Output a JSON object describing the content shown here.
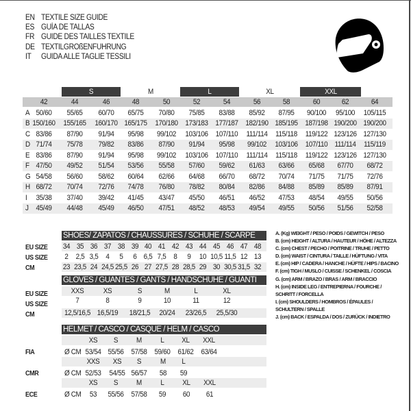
{
  "titles": [
    {
      "code": "EN",
      "text": "TEXTILE SIZE GUIDE"
    },
    {
      "code": "ES",
      "text": "GUÍA DE TALLAS"
    },
    {
      "code": "FR",
      "text": "GUIDE DES TAILLES TEXTILE"
    },
    {
      "code": "DE",
      "text": "TEXTILGRÖßENFÜHRUNG"
    },
    {
      "code": "IT",
      "text": "GUIDA ALLE TAGLIE TESSILI"
    }
  ],
  "logo_icon": "helmet-icon",
  "textile": {
    "size_groups": [
      "S",
      "M",
      "L",
      "XL",
      "XXL"
    ],
    "columns": [
      "42",
      "44",
      "46",
      "48",
      "50",
      "52",
      "54",
      "56",
      "58",
      "60",
      "62",
      "64"
    ],
    "rows": [
      {
        "letter": "A",
        "values": [
          "50/60",
          "55/65",
          "60/70",
          "65/75",
          "70/80",
          "75/85",
          "83/88",
          "85/92",
          "87/95",
          "90/100",
          "95/100",
          "105/115"
        ]
      },
      {
        "letter": "B",
        "values": [
          "150/160",
          "155/165",
          "160/170",
          "165/175",
          "170/180",
          "173/183",
          "177/187",
          "182/190",
          "185/195",
          "187/198",
          "190/200",
          "190/200"
        ]
      },
      {
        "letter": "C",
        "values": [
          "83/86",
          "87/90",
          "91/94",
          "95/98",
          "99/102",
          "103/106",
          "107/110",
          "111/114",
          "115/118",
          "119/122",
          "123/126",
          "127/130"
        ]
      },
      {
        "letter": "D",
        "values": [
          "71/74",
          "75/78",
          "79/82",
          "83/86",
          "87/90",
          "91/94",
          "95/98",
          "99/102",
          "103/106",
          "107/110",
          "111/114",
          "115/119"
        ]
      },
      {
        "letter": "E",
        "values": [
          "83/86",
          "87/90",
          "91/94",
          "95/98",
          "99/102",
          "103/106",
          "107/110",
          "111/114",
          "115/118",
          "119/122",
          "123/126",
          "127/130"
        ]
      },
      {
        "letter": "F",
        "values": [
          "47/50",
          "49/52",
          "51/54",
          "53/56",
          "55/58",
          "57/60",
          "59/62",
          "61/63",
          "63/66",
          "65/68",
          "67/70",
          "68/72"
        ]
      },
      {
        "letter": "G",
        "values": [
          "54/58",
          "56/60",
          "58/62",
          "60/64",
          "62/66",
          "64/68",
          "66/70",
          "68/72",
          "70/74",
          "71/75",
          "71/75",
          "72/76"
        ]
      },
      {
        "letter": "H",
        "values": [
          "68/72",
          "70/74",
          "72/76",
          "74/78",
          "76/80",
          "78/82",
          "80/84",
          "82/86",
          "84/88",
          "85/89",
          "85/89",
          "87/91"
        ]
      },
      {
        "letter": "I",
        "values": [
          "35/38",
          "37/40",
          "39/42",
          "41/45",
          "43/47",
          "45/50",
          "46/51",
          "46/52",
          "47/53",
          "48/54",
          "49/55",
          "50/56"
        ]
      },
      {
        "letter": "J",
        "values": [
          "45/49",
          "44/48",
          "45/49",
          "46/50",
          "47/51",
          "48/52",
          "48/53",
          "49/54",
          "49/55",
          "50/56",
          "51/56",
          "52/58"
        ]
      }
    ]
  },
  "shoes": {
    "header": "SHOES/ ZAPATOS / CHAUSSURES / SCHUHE / SCARPE",
    "rows": [
      {
        "label": "EU SIZE",
        "values": [
          "34",
          "35",
          "36",
          "37",
          "38",
          "39",
          "40",
          "41",
          "42",
          "43",
          "44",
          "45",
          "46",
          "47",
          "48"
        ]
      },
      {
        "label": "US SIZE",
        "values": [
          "2",
          "2,5",
          "3,5",
          "4",
          "5",
          "6",
          "6,5",
          "7,5",
          "8",
          "9",
          "10",
          "10,5",
          "11,5",
          "12",
          "13"
        ]
      },
      {
        "label": "CM",
        "values": [
          "23",
          "23,5",
          "24",
          "24,5",
          "25,5",
          "26",
          "27",
          "27,5",
          "28",
          "28,5",
          "29",
          "30",
          "30,5",
          "31,5",
          "32"
        ]
      }
    ]
  },
  "gloves": {
    "header": "GLOVES / GUANTES / GANTS / HANDSCHUHE / GUANTI",
    "rows": [
      {
        "label": "EU SIZE",
        "values": [
          "XXS",
          "XS",
          "S",
          "M",
          "L",
          "XL"
        ]
      },
      {
        "label": "US SIZE",
        "values": [
          "7",
          "8",
          "9",
          "10",
          "11",
          "12"
        ]
      },
      {
        "label": "CM",
        "values": [
          "12,5/16,5",
          "16,5/19",
          "18/21,5",
          "20/24",
          "23/26,5",
          "25,5/30"
        ]
      }
    ]
  },
  "helmet": {
    "header": "HELMET / CASCO / CASQUE / HELM / CASCO",
    "blocks": [
      {
        "label": "FIA",
        "unit": "Ø CM",
        "sizes": [
          "XS",
          "S",
          "M",
          "L",
          "XL",
          "XXL"
        ],
        "values": [
          "53/54",
          "55/56",
          "57/58",
          "59/60",
          "61/62",
          "63/64"
        ]
      },
      {
        "label": "CMR",
        "unit": "Ø CM",
        "sizes": [
          "XXS",
          "XS",
          "S",
          "M",
          "L"
        ],
        "values": [
          "52/53",
          "54/55",
          "56/57",
          "58",
          "59"
        ]
      },
      {
        "label": "ECE",
        "unit": "Ø CM",
        "sizes": [
          "XS",
          "S",
          "M",
          "L",
          "XL",
          "XXL"
        ],
        "values": [
          "53",
          "55/56",
          "57/58",
          "59",
          "60",
          "61"
        ]
      }
    ]
  },
  "legend": [
    "A. (Kg) WEIGHT / PESO / POIDS / GEWITCH / PESO",
    "B. (cm) HEIGHT / ALTURA / HAUTEUR / HÖHE / ALTEZZA",
    "C. (cm) CHEST / PECHO / POITRINE / TRUHE / PETTO",
    "D. (cm) WAIST / CINTURA / TAILLE / HÜFTUNG / VITA",
    "E. (cm) HIP / CADERA / HANCHE / HÜFTE / HIPS /  BACINO",
    "F.  (cm) TIGH / MUSLO / CUISSE / SCHENKEL / COSCIA",
    "G. (cm) ARM  / BRAZO / BRAS / ARM / BRACCIO",
    "H. (cm) INSIDE LEG / ENTREPIERNA / FOURCHE /",
    "SCHRITT / FORCELLA",
    "I.  (cm) SHOULDERS / HOMBROS / ÉPAULES /",
    "SCHULTERN / SPALLE",
    "J. (cm) BACK / ESPALDA / DOS / ZURÜCK / INDIETRO"
  ]
}
